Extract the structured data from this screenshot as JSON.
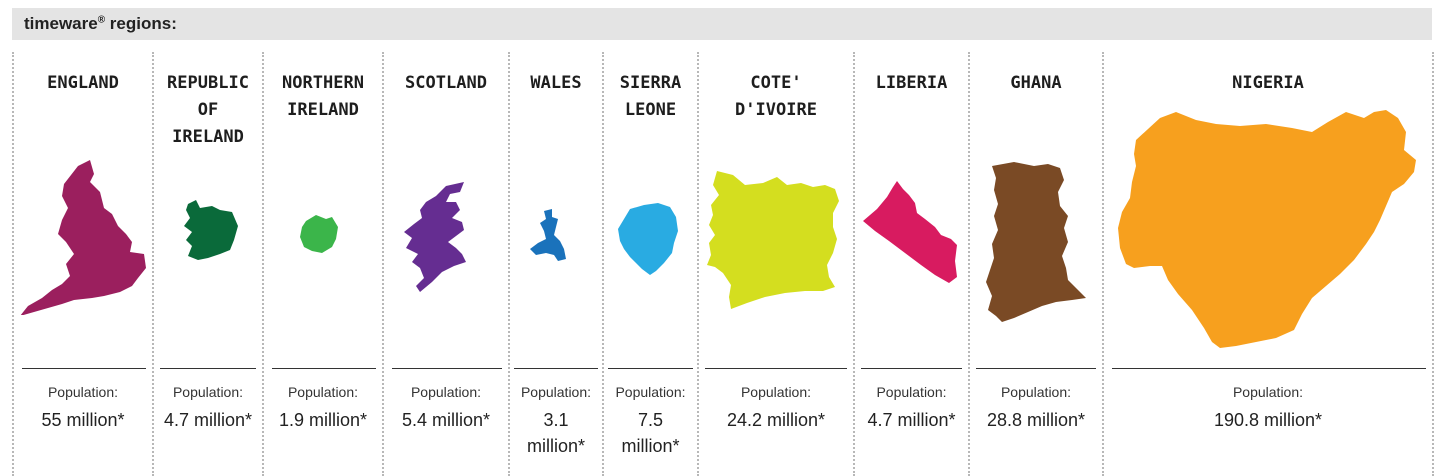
{
  "header": {
    "title": "timeware",
    "registered_mark": "®",
    "title_suffix": " regions:"
  },
  "population_label": "Population:",
  "regions": [
    {
      "name": "ENGLAND",
      "population": "55 million*",
      "color": "#9b1f5e"
    },
    {
      "name": "REPUBLIC\nOF\nIRELAND",
      "population": "4.7 million*",
      "color": "#0a6a3a"
    },
    {
      "name": "NORTHERN\nIRELAND",
      "population": "1.9 million*",
      "color": "#3bb54a"
    },
    {
      "name": "SCOTLAND",
      "population": "5.4 million*",
      "color": "#652d91"
    },
    {
      "name": "WALES",
      "population": "3.1\nmillion*",
      "color": "#1a72bb"
    },
    {
      "name": "SIERRA\nLEONE",
      "population": "7.5\nmillion*",
      "color": "#29abe2"
    },
    {
      "name": "COTE'\nD'IVOIRE",
      "population": "24.2 million*",
      "color": "#d4de1f"
    },
    {
      "name": "LIBERIA",
      "population": "4.7 million*",
      "color": "#d81b60"
    },
    {
      "name": "GHANA",
      "population": "28.8 million*",
      "color": "#7a4a25"
    },
    {
      "name": "NIGERIA",
      "population": "190.8 million*",
      "color": "#f7a01e"
    }
  ]
}
